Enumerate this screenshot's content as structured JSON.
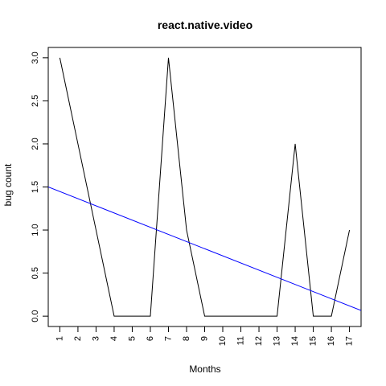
{
  "chart_data": {
    "type": "line",
    "title": "react.native.video",
    "xlabel": "Months",
    "ylabel": "bug count",
    "x": [
      1,
      2,
      3,
      4,
      5,
      6,
      7,
      8,
      9,
      10,
      11,
      12,
      13,
      14,
      15,
      16,
      17
    ],
    "x_tick_labels": [
      "1",
      "2",
      "3",
      "4",
      "5",
      "6",
      "7",
      "8",
      "9",
      "10",
      "11",
      "12",
      "13",
      "14",
      "15",
      "16",
      "17"
    ],
    "y_tick_labels": [
      "0.0",
      "0.5",
      "1.0",
      "1.5",
      "2.0",
      "2.5",
      "3.0"
    ],
    "y_ticks": [
      0,
      0.5,
      1,
      1.5,
      2,
      2.5,
      3
    ],
    "xlim": [
      0.36,
      17.64
    ],
    "ylim": [
      -0.12,
      3.12
    ],
    "grid": false,
    "series": [
      {
        "kind": "line",
        "color": "#000000",
        "values": [
          3,
          2,
          1,
          0,
          0,
          0,
          3,
          1,
          0,
          0,
          0,
          0,
          0,
          2,
          0,
          0,
          1
        ]
      },
      {
        "kind": "trend",
        "color": "#0000ff",
        "intercept": 1.53,
        "slope": -0.083
      }
    ]
  }
}
